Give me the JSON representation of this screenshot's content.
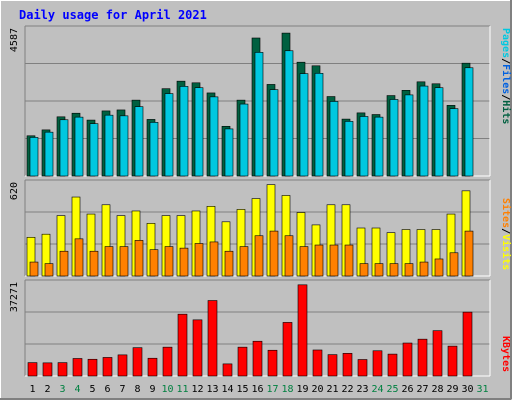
{
  "chart_data": [
    {
      "type": "bar",
      "title": "Daily usage for April 2021",
      "panel": "top",
      "ymax_label": "4587",
      "right_label": [
        "Pages",
        "Files",
        "Hits"
      ],
      "series_colors": {
        "Pages": "#00C8E0",
        "Files": "#0060E0",
        "Hits": "#006040"
      },
      "categories": [
        "1",
        "2",
        "3",
        "4",
        "5",
        "6",
        "7",
        "8",
        "9",
        "10",
        "11",
        "12",
        "13",
        "14",
        "15",
        "16",
        "17",
        "18",
        "19",
        "20",
        "21",
        "22",
        "23",
        "24",
        "25",
        "26",
        "27",
        "28",
        "29",
        "30",
        "31"
      ],
      "ylim": [
        0,
        4587
      ],
      "series": [
        {
          "name": "Hits",
          "values": [
            1230,
            1410,
            1810,
            1920,
            1710,
            1990,
            2020,
            2320,
            1730,
            2670,
            2900,
            2850,
            2540,
            1520,
            2320,
            4220,
            2800,
            4370,
            3480,
            3370,
            2430,
            1740,
            1930,
            1880,
            2460,
            2620,
            2880,
            2820,
            2160,
            3450,
            0
          ]
        },
        {
          "name": "Pages",
          "values": [
            1180,
            1340,
            1720,
            1800,
            1600,
            1860,
            1840,
            2120,
            1640,
            2520,
            2740,
            2700,
            2420,
            1440,
            2200,
            3780,
            2640,
            3830,
            3130,
            3140,
            2280,
            1670,
            1820,
            1800,
            2340,
            2480,
            2750,
            2700,
            2060,
            3310,
            0
          ]
        }
      ]
    },
    {
      "type": "bar",
      "panel": "middle",
      "ymax_label": "620",
      "right_label": [
        "Sites",
        "Visits"
      ],
      "series_colors": {
        "Visits": "#FFFF00",
        "Sites": "#FF8000"
      },
      "categories": [
        "1",
        "2",
        "3",
        "4",
        "5",
        "6",
        "7",
        "8",
        "9",
        "10",
        "11",
        "12",
        "13",
        "14",
        "15",
        "16",
        "17",
        "18",
        "19",
        "20",
        "21",
        "22",
        "23",
        "24",
        "25",
        "26",
        "27",
        "28",
        "29",
        "30",
        "31"
      ],
      "ylim": [
        0,
        620
      ],
      "series": [
        {
          "name": "Visits",
          "values": [
            250,
            270,
            390,
            510,
            400,
            460,
            390,
            420,
            340,
            390,
            390,
            420,
            450,
            350,
            430,
            500,
            590,
            520,
            410,
            330,
            460,
            460,
            310,
            310,
            280,
            300,
            300,
            300,
            400,
            550,
            0
          ]
        },
        {
          "name": "Sites",
          "values": [
            90,
            80,
            160,
            240,
            160,
            190,
            190,
            230,
            170,
            190,
            180,
            210,
            220,
            160,
            190,
            260,
            290,
            260,
            190,
            200,
            200,
            200,
            80,
            80,
            80,
            80,
            90,
            110,
            150,
            290,
            0
          ]
        }
      ]
    },
    {
      "type": "bar",
      "panel": "bottom",
      "ymax_label": "37271",
      "right_label": [
        "KBytes"
      ],
      "series_colors": {
        "KBytes": "#FF0000"
      },
      "categories": [
        "1",
        "2",
        "3",
        "4",
        "5",
        "6",
        "7",
        "8",
        "9",
        "10",
        "11",
        "12",
        "13",
        "14",
        "15",
        "16",
        "17",
        "18",
        "19",
        "20",
        "21",
        "22",
        "23",
        "24",
        "25",
        "26",
        "27",
        "28",
        "29",
        "30",
        "31"
      ],
      "ylim": [
        0,
        37271
      ],
      "series": [
        {
          "name": "KBytes",
          "values": [
            5200,
            5100,
            5200,
            6800,
            6500,
            7200,
            8200,
            11000,
            6900,
            11200,
            24000,
            21800,
            29300,
            4700,
            11200,
            13500,
            10000,
            20800,
            35400,
            10100,
            8300,
            8800,
            6400,
            9800,
            8500,
            12800,
            14300,
            17600,
            11600,
            24800,
            0
          ]
        }
      ]
    }
  ],
  "x_label_colors": {
    "weekday": "#000000",
    "weekend": "#008040"
  },
  "weekend_days": [
    "3",
    "4",
    "10",
    "11",
    "17",
    "18",
    "24",
    "25",
    "31"
  ],
  "frame_colors": {
    "outer_bg": "#C0C0C0",
    "plot_bg": "#C0C0C0",
    "title": "#0000FF"
  }
}
